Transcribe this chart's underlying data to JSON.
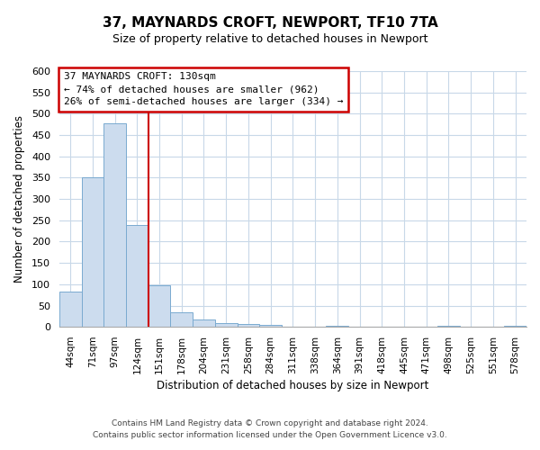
{
  "title": "37, MAYNARDS CROFT, NEWPORT, TF10 7TA",
  "subtitle": "Size of property relative to detached houses in Newport",
  "xlabel": "Distribution of detached houses by size in Newport",
  "ylabel": "Number of detached properties",
  "bar_labels": [
    "44sqm",
    "71sqm",
    "97sqm",
    "124sqm",
    "151sqm",
    "178sqm",
    "204sqm",
    "231sqm",
    "258sqm",
    "284sqm",
    "311sqm",
    "338sqm",
    "364sqm",
    "391sqm",
    "418sqm",
    "445sqm",
    "471sqm",
    "498sqm",
    "525sqm",
    "551sqm",
    "578sqm"
  ],
  "bar_values": [
    83,
    350,
    478,
    238,
    97,
    35,
    18,
    8,
    6,
    5,
    0,
    0,
    3,
    0,
    0,
    0,
    0,
    3,
    0,
    0,
    3
  ],
  "bar_color": "#ccdcee",
  "bar_edge_color": "#7aaad0",
  "vline_color": "#cc0000",
  "ylim": [
    0,
    600
  ],
  "yticks": [
    0,
    50,
    100,
    150,
    200,
    250,
    300,
    350,
    400,
    450,
    500,
    550,
    600
  ],
  "annotation_title": "37 MAYNARDS CROFT: 130sqm",
  "annotation_line1": "← 74% of detached houses are smaller (962)",
  "annotation_line2": "26% of semi-detached houses are larger (334) →",
  "annotation_box_color": "#ffffff",
  "annotation_box_edge": "#cc0000",
  "footer_line1": "Contains HM Land Registry data © Crown copyright and database right 2024.",
  "footer_line2": "Contains public sector information licensed under the Open Government Licence v3.0.",
  "background_color": "#ffffff",
  "grid_color": "#c8d8e8"
}
